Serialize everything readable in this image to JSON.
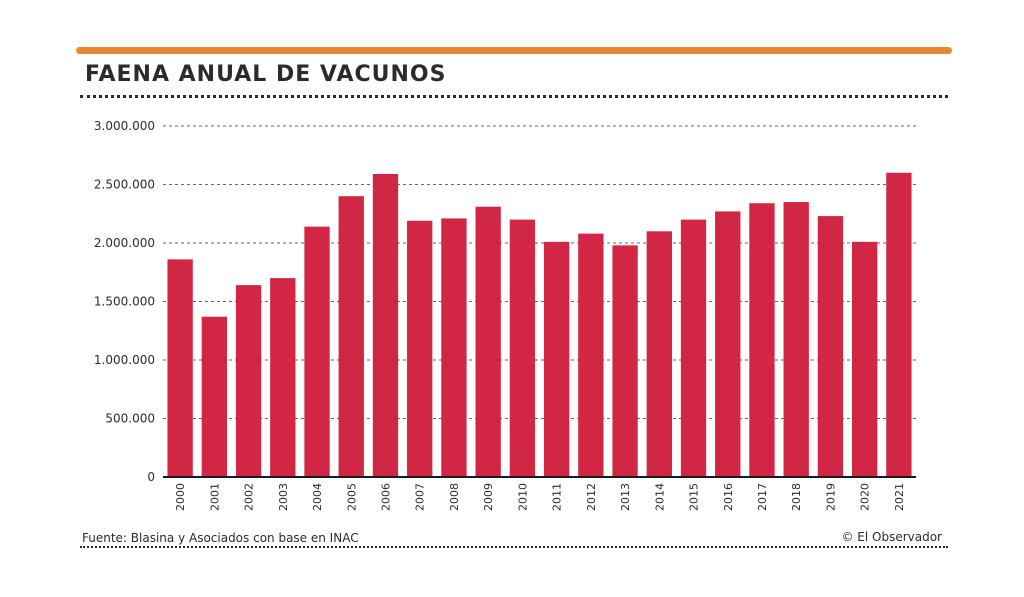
{
  "header": {
    "title": "FAENA ANUAL DE VACUNOS"
  },
  "footer": {
    "source": "Fuente: Blasina y Asociados con base en INAC",
    "credit": "© El Observador"
  },
  "colors": {
    "accent_rule": "#e8892f",
    "bar": "#d12644",
    "grid": "#666666",
    "axis": "#1a1a1a",
    "text": "#2b2b2b"
  },
  "chart_data": {
    "type": "bar",
    "title": "FAENA ANUAL DE VACUNOS",
    "xlabel": "",
    "ylabel": "",
    "ylim": [
      0,
      3000000
    ],
    "yticks": [
      0,
      500000,
      1000000,
      1500000,
      2000000,
      2500000,
      3000000
    ],
    "ytick_labels": [
      "0",
      "500.000",
      "1.000.000",
      "1.500.000",
      "2.000.000",
      "2.500.000",
      "3.000.000"
    ],
    "grid": true,
    "categories": [
      "2000",
      "2001",
      "2002",
      "2003",
      "2004",
      "2005",
      "2006",
      "2007",
      "2008",
      "2009",
      "2010",
      "2011",
      "2012",
      "2013",
      "2014",
      "2015",
      "2016",
      "2017",
      "2018",
      "2019",
      "2020",
      "2021"
    ],
    "values": [
      1860000,
      1370000,
      1640000,
      1700000,
      2140000,
      2400000,
      2590000,
      2190000,
      2210000,
      2310000,
      2200000,
      2010000,
      2080000,
      1980000,
      2100000,
      2200000,
      2270000,
      2340000,
      2350000,
      2230000,
      2010000,
      2600000
    ]
  }
}
